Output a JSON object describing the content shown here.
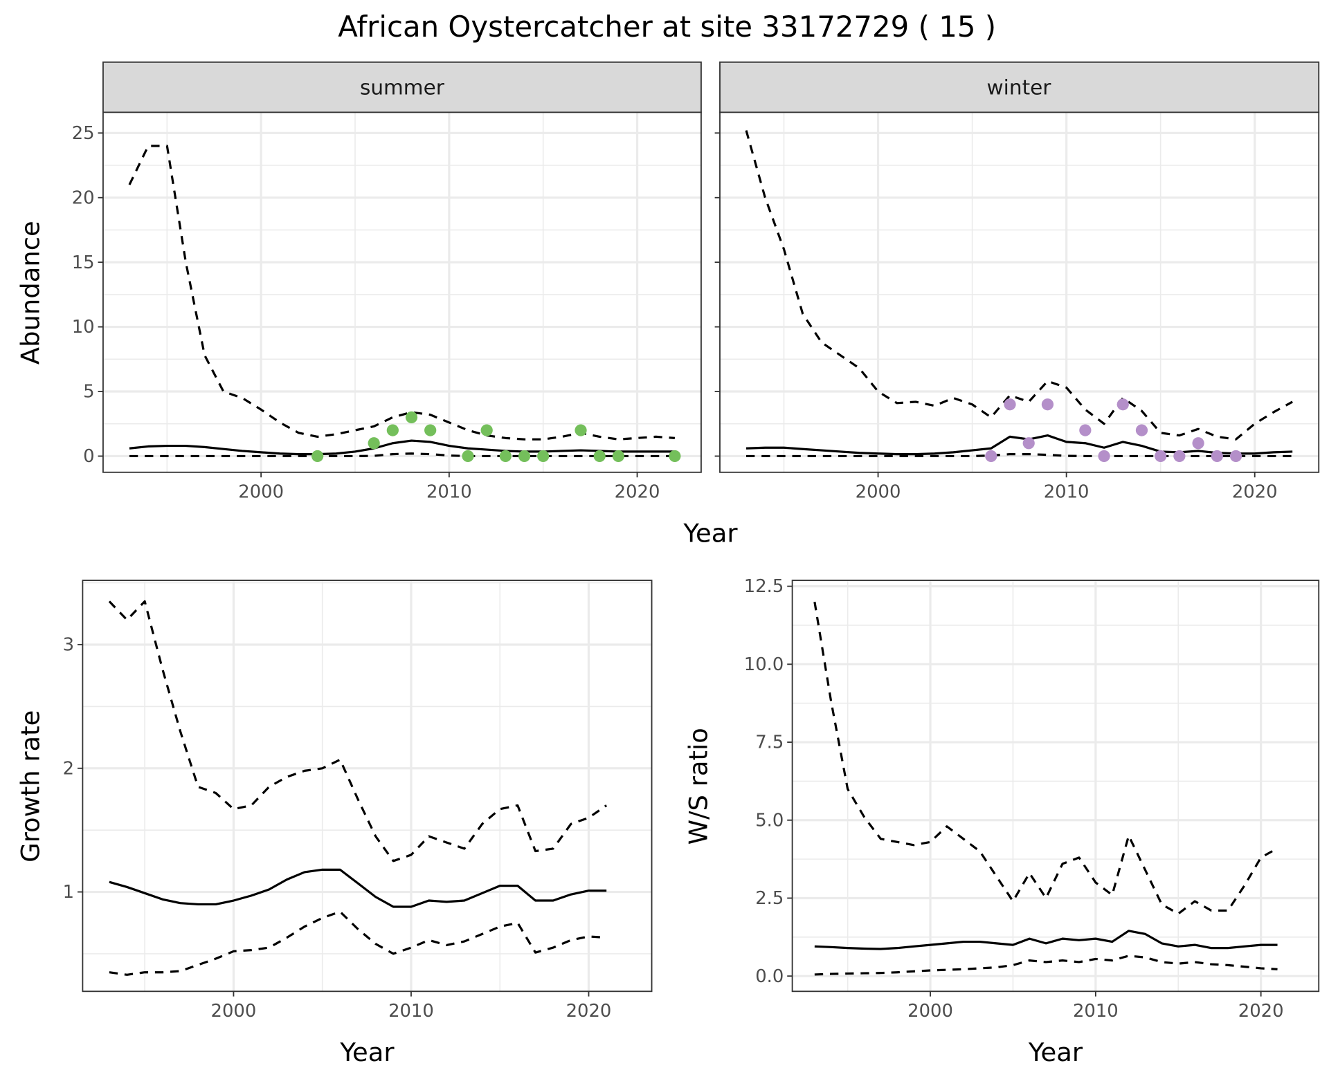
{
  "title": "African Oystercatcher at site 33172729 ( 15 )",
  "colors": {
    "summer_points": "#74bf5b",
    "winter_points": "#b48fc9",
    "line": "#000000",
    "grid": "#ebebeb",
    "strip_bg": "#d9d9d9"
  },
  "chart_data": [
    {
      "type": "line",
      "id": "summer",
      "facet_label": "summer",
      "xlabel": "Year",
      "ylabel": "Abundance",
      "xlim": [
        1991.6,
        2023.4
      ],
      "ylim": [
        -1.25,
        26.6
      ],
      "xticks": [
        2000,
        2010,
        2020
      ],
      "yticks": [
        0,
        5,
        10,
        15,
        20,
        25
      ],
      "grid": true,
      "x": [
        1993,
        1994,
        1995,
        1996,
        1997,
        1998,
        1999,
        2000,
        2001,
        2002,
        2003,
        2004,
        2005,
        2006,
        2007,
        2008,
        2009,
        2010,
        2011,
        2012,
        2013,
        2014,
        2015,
        2016,
        2017,
        2018,
        2019,
        2020,
        2021,
        2022
      ],
      "series": [
        {
          "style": "dashed",
          "values": [
            21,
            24,
            24,
            15,
            7.8,
            5,
            4.5,
            3.6,
            2.6,
            1.8,
            1.5,
            1.7,
            2.0,
            2.3,
            3.0,
            3.4,
            3.2,
            2.6,
            2.0,
            1.6,
            1.4,
            1.3,
            1.3,
            1.5,
            1.8,
            1.5,
            1.3,
            1.4,
            1.5,
            1.4
          ]
        },
        {
          "style": "solid",
          "values": [
            0.6,
            0.75,
            0.8,
            0.8,
            0.7,
            0.55,
            0.4,
            0.3,
            0.2,
            0.15,
            0.15,
            0.2,
            0.35,
            0.6,
            1.0,
            1.2,
            1.1,
            0.8,
            0.6,
            0.5,
            0.4,
            0.35,
            0.35,
            0.4,
            0.45,
            0.4,
            0.35,
            0.35,
            0.35,
            0.35
          ]
        },
        {
          "style": "dashed",
          "values": [
            0,
            0,
            0,
            0,
            0,
            0,
            0,
            0,
            0,
            0,
            0,
            0,
            0,
            0.02,
            0.15,
            0.2,
            0.15,
            0.05,
            0,
            0,
            0,
            0,
            0,
            0,
            0,
            0,
            0,
            0,
            0,
            0
          ]
        }
      ],
      "points": {
        "x": [
          2003,
          2006,
          2007,
          2008,
          2009,
          2011,
          2012,
          2013,
          2014,
          2015,
          2017,
          2018,
          2019,
          2022
        ],
        "y": [
          0,
          1,
          2,
          3,
          2,
          0,
          2,
          0,
          0,
          0,
          2,
          0,
          0,
          0
        ]
      }
    },
    {
      "type": "line",
      "id": "winter",
      "facet_label": "winter",
      "xlabel": "Year",
      "ylabel": "Abundance",
      "xlim": [
        1991.6,
        2023.4
      ],
      "ylim": [
        -1.25,
        26.6
      ],
      "xticks": [
        2000,
        2010,
        2020
      ],
      "yticks": [
        0,
        5,
        10,
        15,
        20,
        25
      ],
      "grid": true,
      "x": [
        1993,
        1994,
        1995,
        1996,
        1997,
        1998,
        1999,
        2000,
        2001,
        2002,
        2003,
        2004,
        2005,
        2006,
        2007,
        2008,
        2009,
        2010,
        2011,
        2012,
        2013,
        2014,
        2015,
        2016,
        2017,
        2018,
        2019,
        2020,
        2021,
        2022
      ],
      "series": [
        {
          "style": "dashed",
          "values": [
            25.2,
            20,
            16,
            11,
            8.8,
            7.8,
            6.8,
            5,
            4.1,
            4.2,
            3.9,
            4.5,
            4.0,
            3.0,
            4.7,
            4.2,
            5.8,
            5.3,
            3.6,
            2.5,
            4.5,
            3.5,
            1.8,
            1.6,
            2.1,
            1.5,
            1.3,
            2.5,
            3.4,
            4.2
          ]
        },
        {
          "style": "solid",
          "values": [
            0.6,
            0.65,
            0.65,
            0.55,
            0.45,
            0.35,
            0.25,
            0.2,
            0.15,
            0.15,
            0.2,
            0.3,
            0.45,
            0.6,
            1.5,
            1.3,
            1.6,
            1.1,
            1.0,
            0.65,
            1.1,
            0.8,
            0.35,
            0.3,
            0.4,
            0.25,
            0.2,
            0.2,
            0.3,
            0.35
          ]
        },
        {
          "style": "dashed",
          "values": [
            0,
            0,
            0,
            0,
            0,
            0,
            0,
            0,
            0,
            0,
            0,
            0,
            0,
            0.05,
            0.15,
            0.15,
            0.1,
            0.02,
            0,
            0,
            0,
            0,
            0,
            0,
            0,
            0,
            0,
            0,
            0,
            0
          ]
        }
      ],
      "points": {
        "x": [
          2006,
          2007,
          2008,
          2009,
          2011,
          2012,
          2013,
          2014,
          2015,
          2016,
          2017,
          2018,
          2019
        ],
        "y": [
          0,
          4,
          1,
          4,
          2,
          0,
          4,
          2,
          0,
          0,
          1,
          0,
          0
        ]
      }
    },
    {
      "type": "line",
      "id": "growth",
      "xlabel": "Year",
      "ylabel": "Growth rate",
      "xlim": [
        1991.5,
        2023.55
      ],
      "ylim": [
        0.196,
        3.52
      ],
      "xticks": [
        2000,
        2010,
        2020
      ],
      "yticks": [
        1,
        2,
        3
      ],
      "grid": true,
      "x": [
        1993,
        1994,
        1995,
        1996,
        1997,
        1998,
        1999,
        2000,
        2001,
        2002,
        2003,
        2004,
        2005,
        2006,
        2007,
        2008,
        2009,
        2010,
        2011,
        2012,
        2013,
        2014,
        2015,
        2016,
        2017,
        2018,
        2019,
        2020,
        2021
      ],
      "series": [
        {
          "style": "dashed",
          "values": [
            3.35,
            3.2,
            3.35,
            2.8,
            2.3,
            1.85,
            1.8,
            1.67,
            1.7,
            1.85,
            1.93,
            1.98,
            2.0,
            2.07,
            1.75,
            1.45,
            1.25,
            1.3,
            1.45,
            1.4,
            1.35,
            1.55,
            1.67,
            1.7,
            1.33,
            1.35,
            1.55,
            1.6,
            1.7
          ]
        },
        {
          "style": "solid",
          "values": [
            1.08,
            1.04,
            0.99,
            0.94,
            0.91,
            0.9,
            0.9,
            0.93,
            0.97,
            1.02,
            1.1,
            1.16,
            1.18,
            1.18,
            1.07,
            0.96,
            0.88,
            0.88,
            0.93,
            0.92,
            0.93,
            0.99,
            1.05,
            1.05,
            0.93,
            0.93,
            0.98,
            1.01,
            1.01
          ]
        },
        {
          "style": "dashed",
          "values": [
            0.35,
            0.33,
            0.35,
            0.35,
            0.36,
            0.41,
            0.46,
            0.52,
            0.53,
            0.55,
            0.63,
            0.72,
            0.79,
            0.84,
            0.7,
            0.58,
            0.5,
            0.55,
            0.61,
            0.57,
            0.6,
            0.66,
            0.72,
            0.75,
            0.51,
            0.55,
            0.61,
            0.64,
            0.63
          ]
        }
      ]
    },
    {
      "type": "line",
      "id": "ratio",
      "xlabel": "Year",
      "ylabel": "W/S ratio",
      "xlim": [
        1991.65,
        2023.5
      ],
      "ylim": [
        -0.49,
        12.69
      ],
      "xticks": [
        2000,
        2010,
        2020
      ],
      "yticks": [
        0.0,
        2.5,
        5.0,
        7.5,
        10.0,
        12.5
      ],
      "ytick_labels": [
        "0.0",
        "2.5",
        "5.0",
        "7.5",
        "10.0",
        "12.5"
      ],
      "grid": true,
      "x": [
        1993,
        1994,
        1995,
        1996,
        1997,
        1998,
        1999,
        2000,
        2001,
        2002,
        2003,
        2004,
        2005,
        2006,
        2007,
        2008,
        2009,
        2010,
        2011,
        2012,
        2013,
        2014,
        2015,
        2016,
        2017,
        2018,
        2019,
        2020,
        2021
      ],
      "series": [
        {
          "style": "dashed",
          "values": [
            12.0,
            8.8,
            6.0,
            5.1,
            4.4,
            4.3,
            4.2,
            4.3,
            4.8,
            4.4,
            4.0,
            3.2,
            2.4,
            3.3,
            2.5,
            3.6,
            3.8,
            3.0,
            2.6,
            4.5,
            3.4,
            2.3,
            2.0,
            2.4,
            2.1,
            2.1,
            2.9,
            3.8,
            4.1
          ]
        },
        {
          "style": "solid",
          "values": [
            0.95,
            0.93,
            0.9,
            0.88,
            0.87,
            0.9,
            0.95,
            1.0,
            1.05,
            1.1,
            1.1,
            1.05,
            1.0,
            1.2,
            1.05,
            1.2,
            1.15,
            1.2,
            1.1,
            1.45,
            1.35,
            1.05,
            0.95,
            1.0,
            0.9,
            0.9,
            0.95,
            1.0,
            1.0
          ]
        },
        {
          "style": "dashed",
          "values": [
            0.05,
            0.07,
            0.08,
            0.09,
            0.1,
            0.12,
            0.15,
            0.18,
            0.2,
            0.22,
            0.25,
            0.28,
            0.35,
            0.5,
            0.45,
            0.5,
            0.45,
            0.55,
            0.5,
            0.65,
            0.6,
            0.45,
            0.4,
            0.45,
            0.38,
            0.35,
            0.3,
            0.25,
            0.22
          ]
        }
      ]
    }
  ],
  "shared_xlabel_top": "Year"
}
